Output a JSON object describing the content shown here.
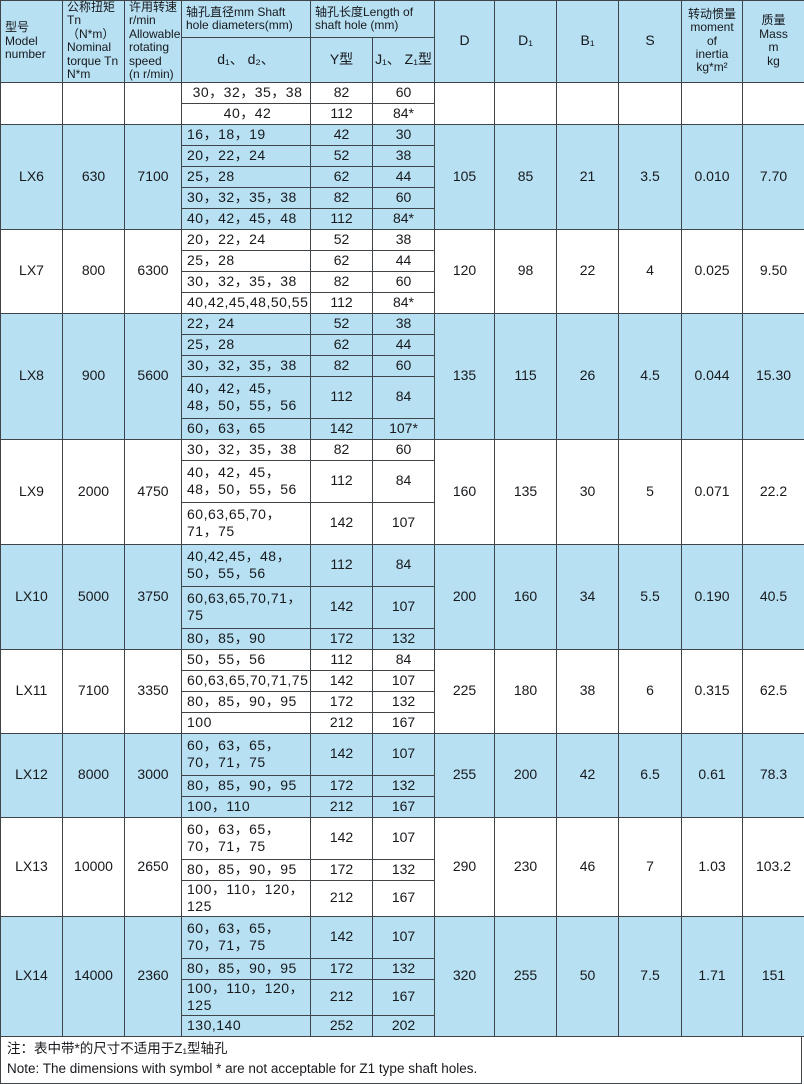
{
  "colors": {
    "header_bg": "#b7e0f3",
    "row_alt_bg": "#b7e0f3",
    "row_bg": "#ffffff",
    "grid_line": "#3f4448"
  },
  "table": {
    "header": {
      "model": "型号\nModel\nnumber",
      "torque": "公称扭矩\nTn（N*m）\nNominal\ntorque Tn\nN*m",
      "speed": "许用转速\nr/min\nAllowable\nrotating\nspeed\n(n r/min)",
      "shaft_dia": "轴孔直径mm Shaft\nhole diameters(mm)",
      "shaft_len": "轴孔长度Length of\nshaft hole (mm)",
      "d1d2": "d₁、 d₂、",
      "y_type": "Y型",
      "jz_type": "J₁、 Z₁型",
      "D": "D",
      "D1": "D₁",
      "B1": "B₁",
      "S": "S",
      "inertia": "转动惯量\nmoment\nof\ninertia\nkg*m²",
      "mass": "质量\nMass\nm\nkg"
    },
    "groups": [
      {
        "model": "",
        "torque": "",
        "speed": "",
        "D": "",
        "D1": "",
        "B1": "",
        "S": "",
        "inertia": "",
        "mass": "",
        "rows": [
          {
            "d": "30，32，35，38",
            "y": "82",
            "jz": "60",
            "h": 21
          },
          {
            "d": "40，42",
            "y": "112",
            "jz": "84*",
            "h": 21
          }
        ]
      },
      {
        "model": "LX6",
        "torque": "630",
        "speed": "7100",
        "D": "105",
        "D1": "85",
        "B1": "21",
        "S": "3.5",
        "inertia": "0.010",
        "mass": "7.70",
        "rows": [
          {
            "d": "16，18，19",
            "y": "42",
            "jz": "30",
            "h": 21
          },
          {
            "d": "20，22，24",
            "y": "52",
            "jz": "38",
            "h": 21
          },
          {
            "d": "25，28",
            "y": "62",
            "jz": "44",
            "h": 21
          },
          {
            "d": "30，32，35，38",
            "y": "82",
            "jz": "60",
            "h": 21
          },
          {
            "d": "40，42，45，48",
            "y": "112",
            "jz": "84*",
            "h": 21
          }
        ]
      },
      {
        "model": "LX7",
        "torque": "800",
        "speed": "6300",
        "D": "120",
        "D1": "98",
        "B1": "22",
        "S": "4",
        "inertia": "0.025",
        "mass": "9.50",
        "rows": [
          {
            "d": "20，22，24",
            "y": "52",
            "jz": "38",
            "h": 21
          },
          {
            "d": "25，28",
            "y": "62",
            "jz": "44",
            "h": 21
          },
          {
            "d": "30，32，35，38",
            "y": "82",
            "jz": "60",
            "h": 21
          },
          {
            "d": "40,42,45,48,50,55",
            "y": "112",
            "jz": "84*",
            "h": 21
          }
        ]
      },
      {
        "model": "LX8",
        "torque": "900",
        "speed": "5600",
        "D": "135",
        "D1": "115",
        "B1": "26",
        "S": "4.5",
        "inertia": "0.044",
        "mass": "15.30",
        "rows": [
          {
            "d": "22，24",
            "y": "52",
            "jz": "38",
            "h": 21
          },
          {
            "d": "25，28",
            "y": "62",
            "jz": "44",
            "h": 21
          },
          {
            "d": "30，32，35，38",
            "y": "82",
            "jz": "60",
            "h": 21
          },
          {
            "d": "40，42，45，48，50，55，56",
            "y": "112",
            "jz": "84",
            "h": 42
          },
          {
            "d": "60，63，65",
            "y": "142",
            "jz": "107*",
            "h": 21
          }
        ]
      },
      {
        "model": "LX9",
        "torque": "2000",
        "speed": "4750",
        "D": "160",
        "D1": "135",
        "B1": "30",
        "S": "5",
        "inertia": "0.071",
        "mass": "22.2",
        "rows": [
          {
            "d": "30，32，35，38",
            "y": "82",
            "jz": "60",
            "h": 21
          },
          {
            "d": "40，42，45，48，50，55，56",
            "y": "112",
            "jz": "84",
            "h": 42
          },
          {
            "d": "60,63,65,70，71，75",
            "y": "142",
            "jz": "107",
            "h": 42
          }
        ]
      },
      {
        "model": "LX10",
        "torque": "5000",
        "speed": "3750",
        "D": "200",
        "D1": "160",
        "B1": "34",
        "S": "5.5",
        "inertia": "0.190",
        "mass": "40.5",
        "rows": [
          {
            "d": "40,42,45，48，50，55，56",
            "y": "112",
            "jz": "84",
            "h": 42
          },
          {
            "d": "60,63,65,70,71，75",
            "y": "142",
            "jz": "107",
            "h": 42
          },
          {
            "d": "80，85，90",
            "y": "172",
            "jz": "132",
            "h": 21
          }
        ]
      },
      {
        "model": "LX11",
        "torque": "7100",
        "speed": "3350",
        "D": "225",
        "D1": "180",
        "B1": "38",
        "S": "6",
        "inertia": "0.315",
        "mass": "62.5",
        "rows": [
          {
            "d": "50，55，56",
            "y": "112",
            "jz": "84",
            "h": 21
          },
          {
            "d": "60,63,65,70,71,75",
            "y": "142",
            "jz": "107",
            "h": 21
          },
          {
            "d": "80，85，90，95",
            "y": "172",
            "jz": "132",
            "h": 21
          },
          {
            "d": "100",
            "y": "212",
            "jz": "167",
            "h": 21
          }
        ]
      },
      {
        "model": "LX12",
        "torque": "8000",
        "speed": "3000",
        "D": "255",
        "D1": "200",
        "B1": "42",
        "S": "6.5",
        "inertia": "0.61",
        "mass": "78.3",
        "rows": [
          {
            "d": "60，63，65，70，71，75",
            "y": "142",
            "jz": "107",
            "h": 42
          },
          {
            "d": "80，85，90，95",
            "y": "172",
            "jz": "132",
            "h": 21
          },
          {
            "d": "100，110",
            "y": "212",
            "jz": "167",
            "h": 21
          }
        ]
      },
      {
        "model": "LX13",
        "torque": "10000",
        "speed": "2650",
        "D": "290",
        "D1": "230",
        "B1": "46",
        "S": "7",
        "inertia": "1.03",
        "mass": "103.2",
        "rows": [
          {
            "d": "60，63，65，70，71，75",
            "y": "142",
            "jz": "107",
            "h": 42
          },
          {
            "d": "80，85，90，95",
            "y": "172",
            "jz": "132",
            "h": 21
          },
          {
            "d": "100，110，120，125",
            "y": "212",
            "jz": "167",
            "h": 21
          }
        ]
      },
      {
        "model": "LX14",
        "torque": "14000",
        "speed": "2360",
        "D": "320",
        "D1": "255",
        "B1": "50",
        "S": "7.5",
        "inertia": "1.71",
        "mass": "151",
        "rows": [
          {
            "d": "60，63，65，70，71，75",
            "y": "142",
            "jz": "107",
            "h": 42
          },
          {
            "d": "80，85，90，95",
            "y": "172",
            "jz": "132",
            "h": 21
          },
          {
            "d": "100，110，120，125",
            "y": "212",
            "jz": "167",
            "h": 21
          },
          {
            "d": "130,140",
            "y": "252",
            "jz": "202",
            "h": 21
          }
        ]
      }
    ]
  },
  "note": {
    "line1_cn": "注：表中带*的尺寸不适用于Z₁型轴孔",
    "line2_en": "Note: The dimensions with symbol * are not acceptable for Z1 type shaft holes."
  }
}
